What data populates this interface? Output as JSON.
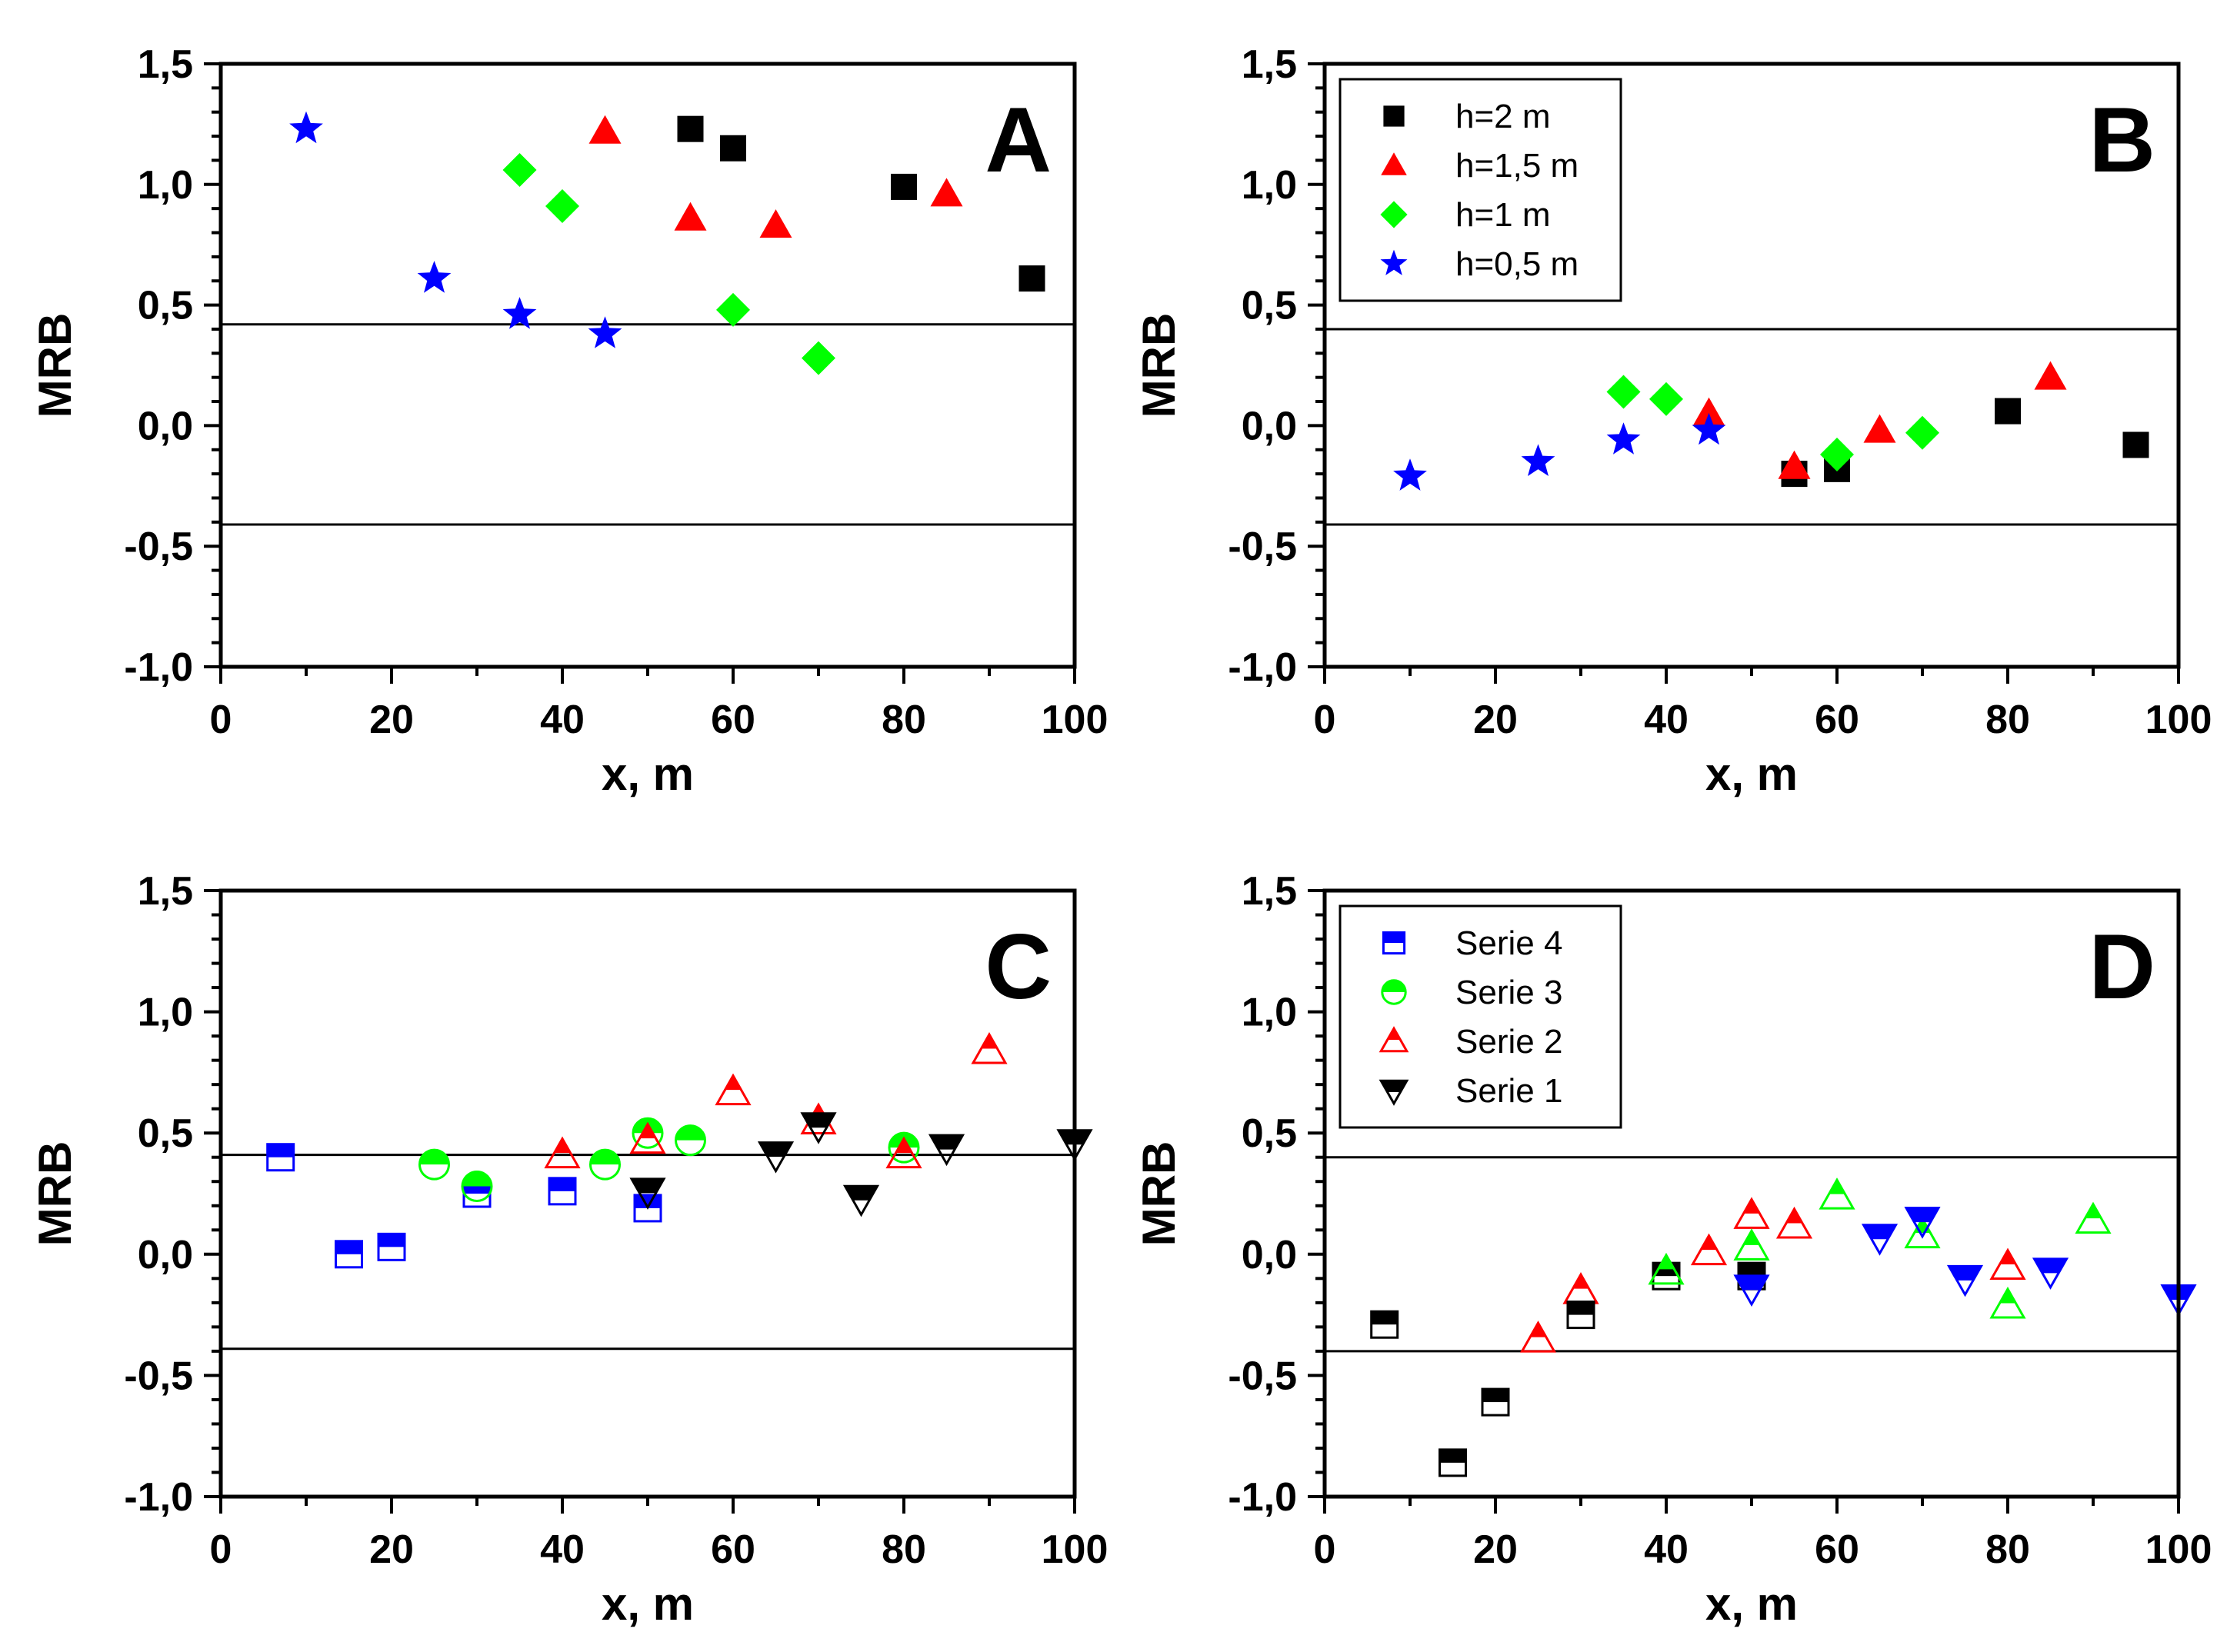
{
  "chart_data": [
    {
      "panel": "A",
      "type": "scatter",
      "xlabel": "x, m",
      "ylabel": "MRB",
      "xlim": [
        0,
        100
      ],
      "ylim": [
        -1.0,
        1.5
      ],
      "xticks": [
        0,
        20,
        40,
        60,
        80,
        100
      ],
      "xtick_labels": [
        "0",
        "20",
        "40",
        "60",
        "80",
        "100"
      ],
      "yticks": [
        1.5,
        1.0,
        0.5,
        0.0,
        -0.5,
        -1.0
      ],
      "ytick_labels": [
        "1,5",
        "1,0",
        "0,5",
        "0,0",
        "-0,5",
        "-1,0"
      ],
      "reference_lines": [
        0.42,
        -0.41
      ],
      "legend": null,
      "series": [
        {
          "name": "h=2 m",
          "marker": "square",
          "color": "#000000",
          "x": [
            55,
            60,
            80,
            95
          ],
          "y": [
            1.23,
            1.15,
            0.99,
            0.61
          ]
        },
        {
          "name": "h=1,5 m",
          "marker": "triangle",
          "color": "#ff0000",
          "x": [
            45,
            55,
            65,
            85
          ],
          "y": [
            1.22,
            0.86,
            0.83,
            0.96
          ]
        },
        {
          "name": "h=1 m",
          "marker": "diamond",
          "color": "#00ff00",
          "x": [
            35,
            40,
            60,
            70
          ],
          "y": [
            1.06,
            0.91,
            0.48,
            0.28
          ]
        },
        {
          "name": "h=0,5 m",
          "marker": "star",
          "color": "#0000ff",
          "x": [
            10,
            25,
            35,
            45
          ],
          "y": [
            1.23,
            0.61,
            0.46,
            0.38
          ]
        }
      ]
    },
    {
      "panel": "B",
      "type": "scatter",
      "xlabel": "x, m",
      "ylabel": "MRB",
      "xlim": [
        0,
        100
      ],
      "ylim": [
        -1.0,
        1.5
      ],
      "xticks": [
        0,
        20,
        40,
        60,
        80,
        100
      ],
      "xtick_labels": [
        "0",
        "20",
        "40",
        "60",
        "80",
        "100"
      ],
      "yticks": [
        1.5,
        1.0,
        0.5,
        0.0,
        -0.5,
        -1.0
      ],
      "ytick_labels": [
        "1,5",
        "1,0",
        "0,5",
        "0,0",
        "-0,5",
        "-1,0"
      ],
      "reference_lines": [
        0.4,
        -0.41
      ],
      "legend": "top-left",
      "series": [
        {
          "name": "h=2 m",
          "marker": "square",
          "color": "#000000",
          "x": [
            55,
            60,
            80,
            95
          ],
          "y": [
            -0.2,
            -0.18,
            0.06,
            -0.08
          ]
        },
        {
          "name": "h=1,5 m",
          "marker": "triangle",
          "color": "#ff0000",
          "x": [
            45,
            55,
            65,
            85
          ],
          "y": [
            0.05,
            -0.17,
            -0.02,
            0.2
          ]
        },
        {
          "name": "h=1 m",
          "marker": "diamond",
          "color": "#00ff00",
          "x": [
            35,
            40,
            60,
            70
          ],
          "y": [
            0.14,
            0.11,
            -0.12,
            -0.03
          ]
        },
        {
          "name": "h=0,5 m",
          "marker": "star",
          "color": "#0000ff",
          "x": [
            10,
            25,
            35,
            45
          ],
          "y": [
            -0.21,
            -0.15,
            -0.06,
            -0.02
          ]
        }
      ]
    },
    {
      "panel": "C",
      "type": "scatter",
      "xlabel": "x, m",
      "ylabel": "MRB",
      "xlim": [
        0,
        100
      ],
      "ylim": [
        -1.0,
        1.5
      ],
      "xticks": [
        0,
        20,
        40,
        60,
        80,
        100
      ],
      "xtick_labels": [
        "0",
        "20",
        "40",
        "60",
        "80",
        "100"
      ],
      "yticks": [
        1.5,
        1.0,
        0.5,
        0.0,
        -0.5,
        -1.0
      ],
      "ytick_labels": [
        "1,5",
        "1,0",
        "0,5",
        "0,0",
        "-0,5",
        "-1,0"
      ],
      "reference_lines": [
        0.41,
        -0.39
      ],
      "legend": null,
      "series": [
        {
          "name": "Serie 4",
          "marker": "half-square",
          "color": "#0000ff",
          "x": [
            7,
            15,
            20,
            30,
            40,
            50
          ],
          "y": [
            0.4,
            0.0,
            0.03,
            0.25,
            0.26,
            0.19
          ]
        },
        {
          "name": "Serie 3",
          "marker": "half-circle",
          "color": "#00ff00",
          "x": [
            25,
            30,
            45,
            50,
            55,
            80
          ],
          "y": [
            0.37,
            0.28,
            0.37,
            0.5,
            0.47,
            0.44
          ]
        },
        {
          "name": "Serie 2",
          "marker": "half-triangle-up",
          "color": "#ff0000",
          "x": [
            40,
            50,
            60,
            70,
            80,
            90
          ],
          "y": [
            0.41,
            0.47,
            0.67,
            0.55,
            0.41,
            0.84
          ]
        },
        {
          "name": "Serie 1",
          "marker": "half-triangle-down",
          "color": "#000000",
          "x": [
            50,
            65,
            70,
            75,
            85,
            100
          ],
          "y": [
            0.26,
            0.41,
            0.53,
            0.23,
            0.44,
            0.46
          ]
        }
      ]
    },
    {
      "panel": "D",
      "type": "scatter",
      "xlabel": "x, m",
      "ylabel": "MRB",
      "xlim": [
        0,
        100
      ],
      "ylim": [
        -1.0,
        1.5
      ],
      "xticks": [
        0,
        20,
        40,
        60,
        80,
        100
      ],
      "xtick_labels": [
        "0",
        "20",
        "40",
        "60",
        "80",
        "100"
      ],
      "yticks": [
        1.5,
        1.0,
        0.5,
        0.0,
        -0.5,
        -1.0
      ],
      "ytick_labels": [
        "1,5",
        "1,0",
        "0,5",
        "0,0",
        "-0,5",
        "-1,0"
      ],
      "reference_lines": [
        0.4,
        -0.4
      ],
      "legend": "top-left",
      "series": [
        {
          "name": "Serie 4",
          "marker": "half-square",
          "color": "#0000ff",
          "x": [],
          "y": []
        },
        {
          "name": "Serie 3",
          "marker": "half-circle",
          "color": "#00ff00",
          "x": [],
          "y": []
        },
        {
          "name": "Serie 2",
          "marker": "half-triangle-up",
          "color": "#ff0000",
          "x": [
            25,
            30,
            45,
            50,
            55,
            80
          ],
          "y": [
            -0.35,
            -0.15,
            0.01,
            0.16,
            0.12,
            -0.05
          ]
        },
        {
          "name": "Serie 1",
          "marker": "half-triangle-down",
          "color": "#000000",
          "x": [],
          "y": []
        },
        {
          "name": "",
          "marker": "half-square",
          "color": "#000000",
          "x": [
            7,
            15,
            20,
            30,
            40,
            50
          ],
          "y": [
            -0.29,
            -0.86,
            -0.61,
            -0.25,
            -0.09,
            -0.09
          ]
        },
        {
          "name": "",
          "marker": "half-triangle-up",
          "color": "#00ff00",
          "x": [
            40,
            50,
            60,
            70,
            80,
            90
          ],
          "y": [
            -0.07,
            0.03,
            0.24,
            0.08,
            -0.21,
            0.14
          ]
        },
        {
          "name": "",
          "marker": "half-triangle-down",
          "color": "#0000ff",
          "x": [
            50,
            65,
            70,
            75,
            85,
            100
          ],
          "y": [
            -0.14,
            0.07,
            0.14,
            -0.1,
            -0.07,
            -0.18
          ]
        }
      ]
    }
  ]
}
